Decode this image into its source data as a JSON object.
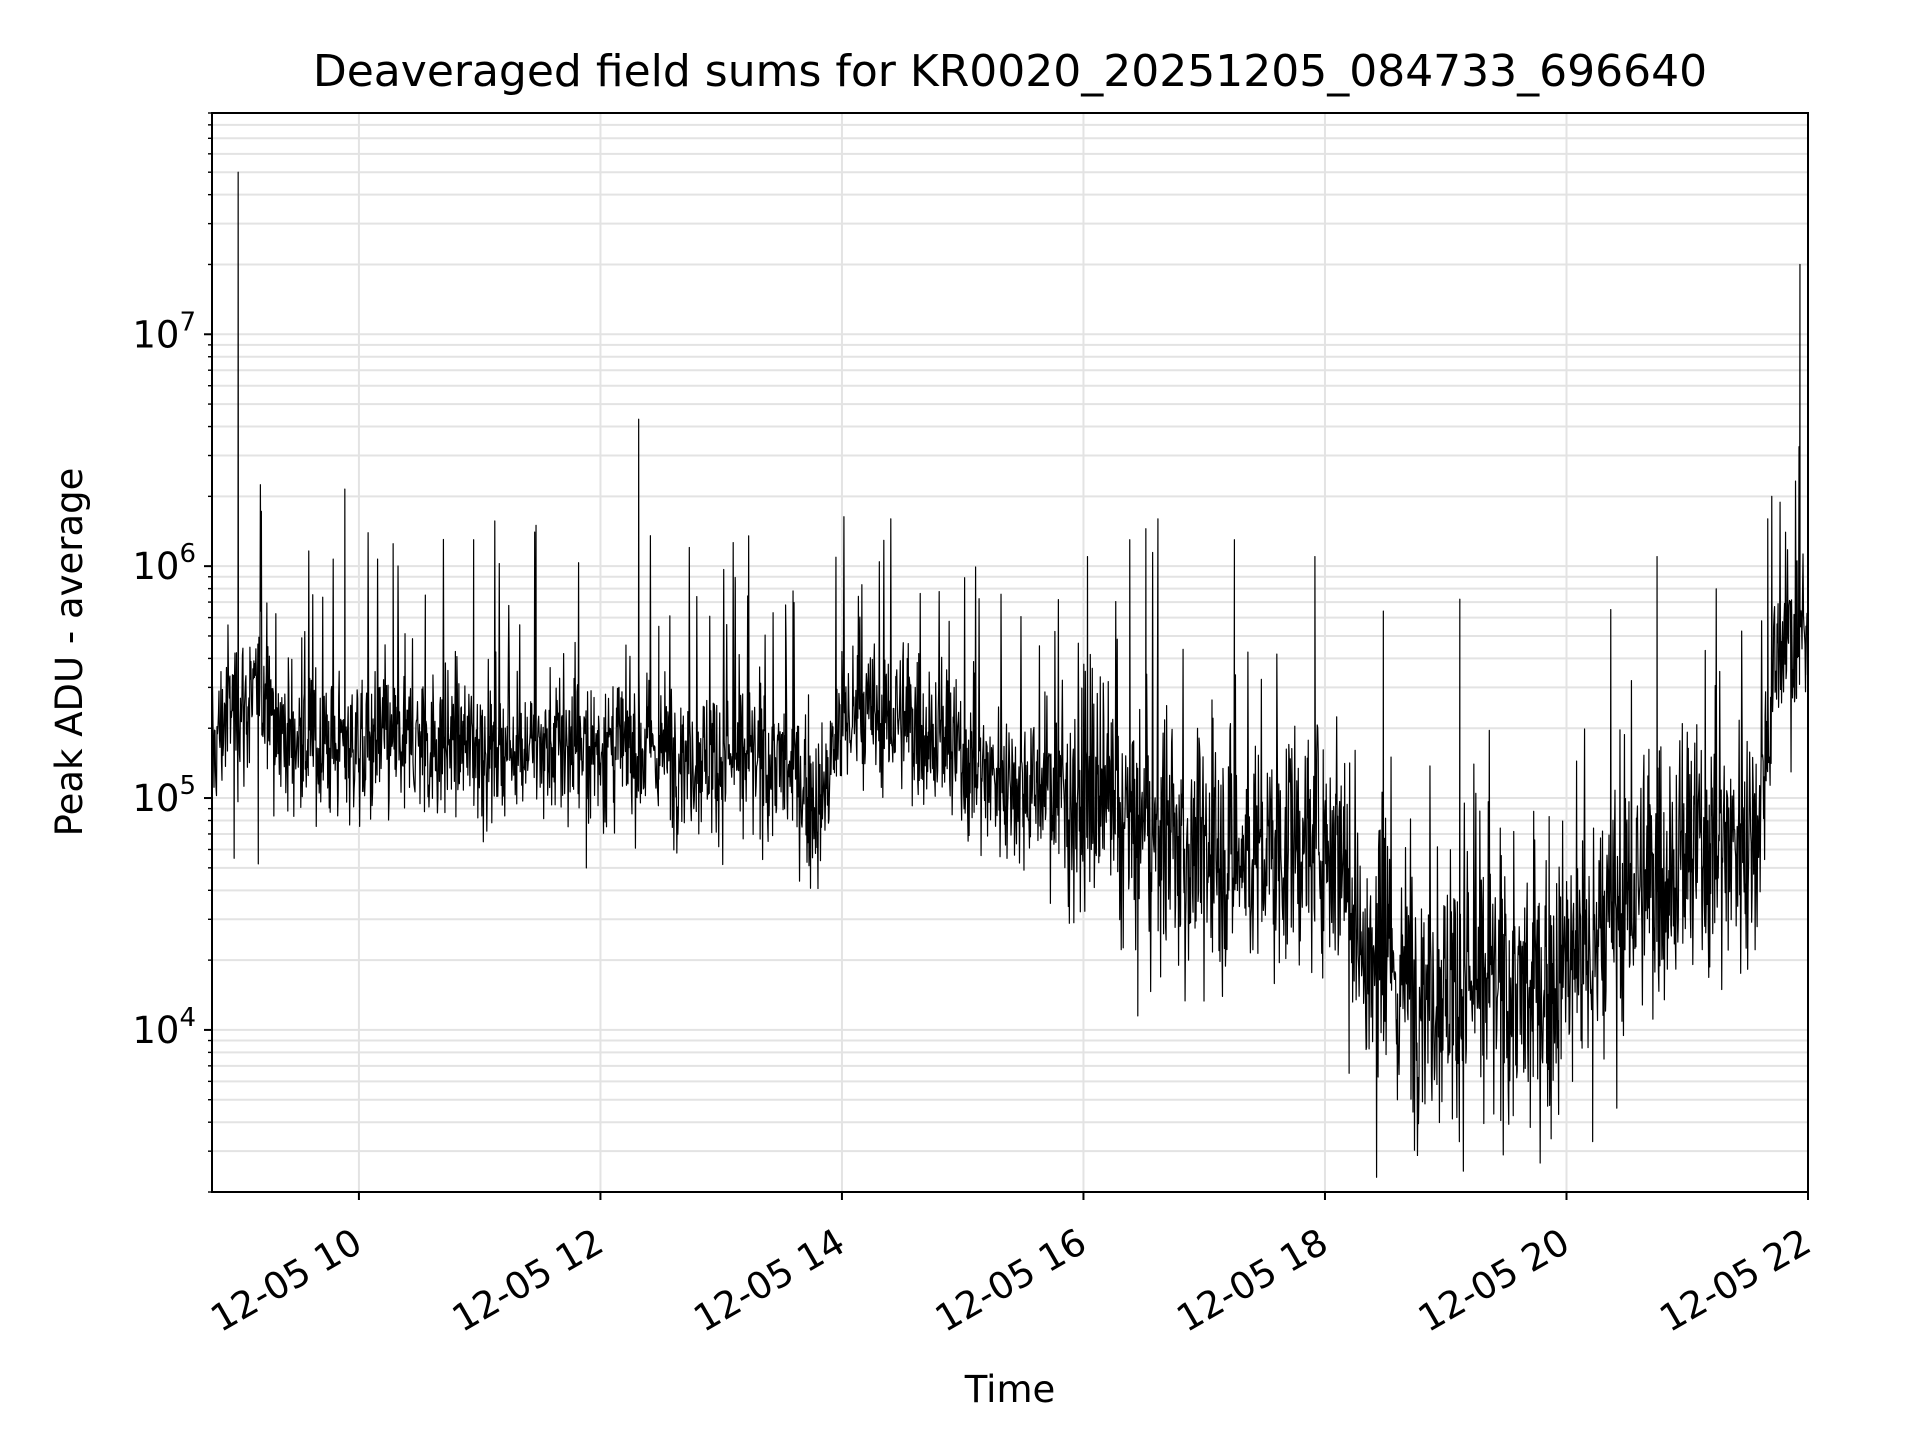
{
  "chart_data": {
    "type": "line",
    "title": "Deaveraged field sums for KR0020_20251205_084733_696640",
    "xlabel": "Time",
    "ylabel": "Peak ADU - average",
    "yscale": "log",
    "grid": true,
    "ylim": [
      2000,
      90000000
    ],
    "xlim": [
      "2025-12-05 08:47",
      "2025-12-05 22:00"
    ],
    "x_ticks": [
      {
        "value": "2025-12-05 10:00",
        "label": "12-05 10"
      },
      {
        "value": "2025-12-05 12:00",
        "label": "12-05 12"
      },
      {
        "value": "2025-12-05 14:00",
        "label": "12-05 14"
      },
      {
        "value": "2025-12-05 16:00",
        "label": "12-05 16"
      },
      {
        "value": "2025-12-05 18:00",
        "label": "12-05 18"
      },
      {
        "value": "2025-12-05 20:00",
        "label": "12-05 20"
      },
      {
        "value": "2025-12-05 22:00",
        "label": "12-05 22"
      }
    ],
    "y_ticks": [
      {
        "value": 10000,
        "base": "10",
        "exp": "4"
      },
      {
        "value": 100000,
        "base": "10",
        "exp": "5"
      },
      {
        "value": 1000000,
        "base": "10",
        "exp": "6"
      },
      {
        "value": 10000000,
        "base": "10",
        "exp": "7"
      }
    ],
    "series": [
      {
        "color": "#000000",
        "noise": 0.23,
        "x": [
          "2025-12-05 08:47",
          "2025-12-05 08:55",
          "2025-12-05 09:05",
          "2025-12-05 09:15",
          "2025-12-05 09:20",
          "2025-12-05 09:30",
          "2025-12-05 10:00",
          "2025-12-05 10:30",
          "2025-12-05 11:00",
          "2025-12-05 11:30",
          "2025-12-05 12:00",
          "2025-12-05 12:30",
          "2025-12-05 13:00",
          "2025-12-05 13:30",
          "2025-12-05 13:50",
          "2025-12-05 14:00",
          "2025-12-05 14:30",
          "2025-12-05 14:50",
          "2025-12-05 15:00",
          "2025-12-05 15:30",
          "2025-12-05 16:00",
          "2025-12-05 16:30",
          "2025-12-05 17:00",
          "2025-12-05 17:30",
          "2025-12-05 18:00",
          "2025-12-05 18:10",
          "2025-12-05 18:20",
          "2025-12-05 18:40",
          "2025-12-05 19:00",
          "2025-12-05 19:30",
          "2025-12-05 19:45",
          "2025-12-05 20:00",
          "2025-12-05 20:15",
          "2025-12-05 20:30",
          "2025-12-05 21:00",
          "2025-12-05 21:30",
          "2025-12-05 21:35",
          "2025-12-05 21:45",
          "2025-12-05 22:00"
        ],
        "y": [
          150000,
          250000,
          250000,
          300000,
          200000,
          170000,
          170000,
          175000,
          170000,
          165000,
          165000,
          160000,
          150000,
          140000,
          90000,
          220000,
          220000,
          180000,
          140000,
          115000,
          100000,
          70000,
          55000,
          55000,
          70000,
          60000,
          18000,
          16000,
          15000,
          15000,
          13000,
          20000,
          22000,
          38000,
          55000,
          70000,
          80000,
          450000,
          500000
        ]
      }
    ],
    "spikes": [
      {
        "x": "2025-12-05 09:00",
        "y": 50000000
      },
      {
        "x": "2025-12-05 09:53",
        "y": 2150000
      },
      {
        "x": "2025-12-05 10:17",
        "y": 1250000
      },
      {
        "x": "2025-12-05 10:33",
        "y": 750000
      },
      {
        "x": "2025-12-05 10:57",
        "y": 1300000
      },
      {
        "x": "2025-12-05 11:28",
        "y": 1500000
      },
      {
        "x": "2025-12-05 12:19",
        "y": 4300000
      },
      {
        "x": "2025-12-05 12:29",
        "y": 550000
      },
      {
        "x": "2025-12-05 13:07",
        "y": 850000
      },
      {
        "x": "2025-12-05 13:32",
        "y": 680000
      },
      {
        "x": "2025-12-05 16:02",
        "y": 1100000
      },
      {
        "x": "2025-12-05 16:23",
        "y": 1300000
      },
      {
        "x": "2025-12-05 16:31",
        "y": 1450000
      },
      {
        "x": "2025-12-05 16:37",
        "y": 1600000
      },
      {
        "x": "2025-12-05 17:15",
        "y": 1300000
      },
      {
        "x": "2025-12-05 17:55",
        "y": 1100000
      },
      {
        "x": "2025-12-05 18:29",
        "y": 640000
      },
      {
        "x": "2025-12-05 19:07",
        "y": 720000
      },
      {
        "x": "2025-12-05 20:22",
        "y": 650000
      },
      {
        "x": "2025-12-05 20:45",
        "y": 1100000
      },
      {
        "x": "2025-12-05 21:40",
        "y": 1600000
      },
      {
        "x": "2025-12-05 21:42",
        "y": 2000000
      },
      {
        "x": "2025-12-05 21:56",
        "y": 20000000
      }
    ],
    "dips": [
      {
        "x": "2025-12-05 08:58",
        "y": 55000
      },
      {
        "x": "2025-12-05 09:10",
        "y": 52000
      },
      {
        "x": "2025-12-05 11:53",
        "y": 50000
      },
      {
        "x": "2025-12-05 16:27",
        "y": 11500
      },
      {
        "x": "2025-12-05 18:12",
        "y": 6500
      },
      {
        "x": "2025-12-05 18:36",
        "y": 5000
      },
      {
        "x": "2025-12-05 19:42",
        "y": 3800
      },
      {
        "x": "2025-12-05 20:03",
        "y": 6000
      },
      {
        "x": "2025-12-05 20:13",
        "y": 3300
      },
      {
        "x": "2025-12-05 20:25",
        "y": 4600
      }
    ]
  }
}
